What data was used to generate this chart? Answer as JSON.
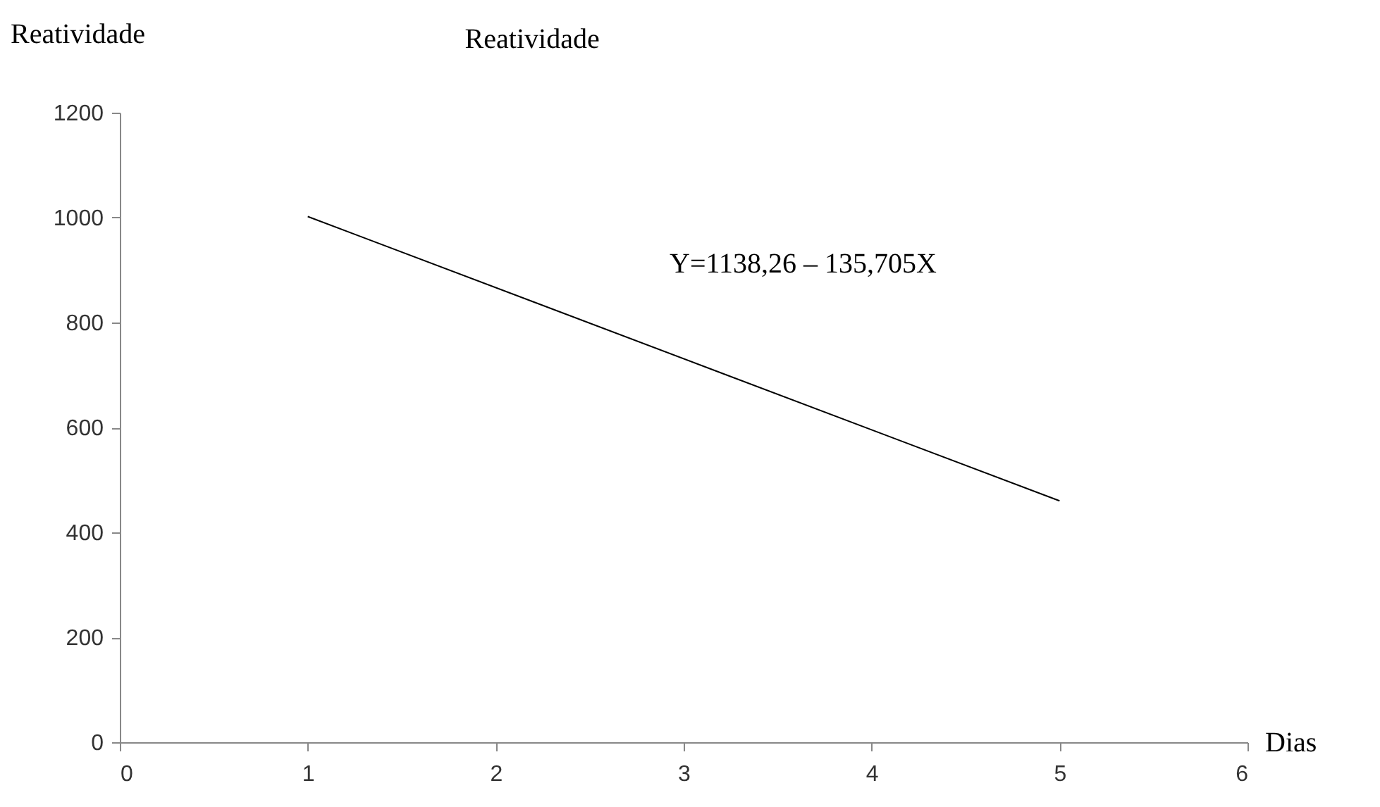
{
  "chart_data": {
    "type": "line",
    "title": "Reatividade",
    "ylabel": "Reatividade",
    "xlabel": "Dias",
    "x": [
      1,
      5
    ],
    "series": [
      {
        "color": "#000000",
        "values": [
          1002,
          460
        ]
      }
    ],
    "xlim": [
      0,
      6
    ],
    "xticks": [
      0,
      1,
      2,
      3,
      4,
      5,
      6
    ],
    "ylim": [
      0,
      1200
    ],
    "yticks": [
      0,
      200,
      400,
      600,
      800,
      1000,
      1200
    ],
    "grid": false,
    "marker": "none",
    "line_style": "solid",
    "annotations": [
      "Y=1138,26 – 135,705X"
    ]
  }
}
